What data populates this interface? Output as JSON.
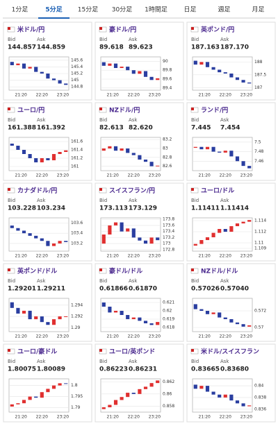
{
  "tabs": [
    "1分足",
    "5分足",
    "15分足",
    "30分足",
    "1時間足",
    "日足",
    "週足",
    "月足"
  ],
  "active_tab": 1,
  "labels": {
    "bid": "Bid",
    "ask": "Ask"
  },
  "panels": [
    {
      "name": "米ドル/円",
      "bid": "144.857",
      "ask": "144.859",
      "chart": {
        "type": "candlestick",
        "ylim": [
          144.7,
          145.7
        ],
        "yticks": [
          144.8,
          145,
          145.2,
          145.4,
          145.6
        ],
        "xticks": [
          "21:20",
          "22:20",
          "23:20"
        ],
        "open": [
          145.55,
          145.45,
          145.5,
          145.35,
          145.4,
          145.25,
          145.2,
          145.05,
          145.0,
          144.9
        ],
        "close": [
          145.45,
          145.5,
          145.35,
          145.4,
          145.25,
          145.2,
          145.05,
          145.0,
          144.9,
          144.86
        ]
      }
    },
    {
      "name": "豪ドル/円",
      "bid": "89.618",
      "ask": "89.623",
      "chart": {
        "type": "candlestick",
        "ylim": [
          89.35,
          90.1
        ],
        "yticks": [
          89.4,
          89.6,
          89.8,
          90
        ],
        "xticks": [
          "21:20",
          "22:20",
          "23:20"
        ],
        "open": [
          89.98,
          89.9,
          89.95,
          89.85,
          89.88,
          89.8,
          89.72,
          89.78,
          89.65,
          89.58
        ],
        "close": [
          89.9,
          89.95,
          89.85,
          89.88,
          89.8,
          89.72,
          89.78,
          89.65,
          89.58,
          89.618
        ]
      }
    },
    {
      "name": "英ポンド/円",
      "bid": "187.163",
      "ask": "187.170",
      "chart": {
        "type": "candlestick",
        "ylim": [
          186.9,
          188.2
        ],
        "yticks": [
          187,
          187.5,
          188
        ],
        "xticks": [
          "21:20",
          "22:20",
          "23:20"
        ],
        "open": [
          188.05,
          187.9,
          188.0,
          187.8,
          187.7,
          187.6,
          187.55,
          187.4,
          187.3,
          187.2
        ],
        "close": [
          187.9,
          188.0,
          187.8,
          187.7,
          187.6,
          187.55,
          187.4,
          187.3,
          187.2,
          187.163
        ]
      }
    },
    {
      "name": "ユーロ/円",
      "bid": "161.388",
      "ask": "161.392",
      "chart": {
        "type": "candlestick",
        "ylim": [
          160.9,
          161.7
        ],
        "yticks": [
          161,
          161.2,
          161.4,
          161.6
        ],
        "xticks": [
          "21:20",
          "22:20",
          "23:20"
        ],
        "open": [
          161.55,
          161.5,
          161.4,
          161.3,
          161.2,
          161.1,
          161.2,
          161.15,
          161.3,
          161.35
        ],
        "close": [
          161.5,
          161.4,
          161.3,
          161.2,
          161.1,
          161.2,
          161.15,
          161.3,
          161.35,
          161.388
        ]
      }
    },
    {
      "name": "NZドル/円",
      "bid": "82.613",
      "ask": "82.620",
      "chart": {
        "type": "candlestick",
        "ylim": [
          82.5,
          83.25
        ],
        "yticks": [
          82.6,
          82.8,
          83,
          83.2
        ],
        "xticks": [
          "21:20",
          "22:20",
          "23:20"
        ],
        "open": [
          82.95,
          83.0,
          83.05,
          82.95,
          83.0,
          82.9,
          82.85,
          82.75,
          82.7,
          82.6
        ],
        "close": [
          83.0,
          83.05,
          82.95,
          83.0,
          82.9,
          82.85,
          82.75,
          82.7,
          82.6,
          82.613
        ]
      }
    },
    {
      "name": "ランド/円",
      "bid": "7.445",
      "ask": "7.454",
      "chart": {
        "type": "candlestick",
        "ylim": [
          7.44,
          7.51
        ],
        "yticks": [
          7.46,
          7.48,
          7.5
        ],
        "xticks": [
          "21:20",
          "22:20",
          "23:20"
        ],
        "open": [
          7.488,
          7.49,
          7.485,
          7.49,
          7.48,
          7.478,
          7.482,
          7.47,
          7.46,
          7.45
        ],
        "close": [
          7.49,
          7.485,
          7.49,
          7.48,
          7.478,
          7.482,
          7.47,
          7.46,
          7.45,
          7.445
        ]
      }
    },
    {
      "name": "カナダドル/円",
      "bid": "103.228",
      "ask": "103.234",
      "chart": {
        "type": "candlestick",
        "ylim": [
          103.05,
          103.7
        ],
        "yticks": [
          103.2,
          103.4,
          103.6
        ],
        "xticks": [
          "21:20",
          "22:20",
          "23:20"
        ],
        "open": [
          103.55,
          103.5,
          103.45,
          103.4,
          103.35,
          103.3,
          103.25,
          103.15,
          103.2,
          103.25
        ],
        "close": [
          103.5,
          103.45,
          103.4,
          103.35,
          103.3,
          103.25,
          103.15,
          103.2,
          103.25,
          103.228
        ]
      }
    },
    {
      "name": "スイスフラン/円",
      "bid": "173.113",
      "ask": "173.129",
      "chart": {
        "type": "candlestick",
        "ylim": [
          172.75,
          173.85
        ],
        "yticks": [
          172.8,
          173,
          173.2,
          173.4,
          173.6,
          173.8
        ],
        "xticks": [
          "21:20",
          "22:20",
          "23:20"
        ],
        "open": [
          173.0,
          173.3,
          173.6,
          173.7,
          173.4,
          173.5,
          173.2,
          173.1,
          173.0,
          173.2
        ],
        "close": [
          173.3,
          173.6,
          173.7,
          173.4,
          173.5,
          173.2,
          173.1,
          173.0,
          173.2,
          173.113
        ]
      }
    },
    {
      "name": "ユーロ/ドル",
      "bid": "1.11411",
      "ask": "1.11414",
      "chart": {
        "type": "candlestick",
        "ylim": [
          1.1085,
          1.1145
        ],
        "yticks": [
          1.109,
          1.11,
          1.112,
          1.114
        ],
        "xticks": [
          "21:20",
          "22:20",
          "23:20"
        ],
        "open": [
          1.1095,
          1.1098,
          1.1105,
          1.111,
          1.1118,
          1.1125,
          1.112,
          1.113,
          1.1135,
          1.1138
        ],
        "close": [
          1.1098,
          1.1105,
          1.111,
          1.1118,
          1.1125,
          1.112,
          1.113,
          1.1135,
          1.1138,
          1.11411
        ]
      }
    },
    {
      "name": "英ポンド/ドル",
      "bid": "1.29201",
      "ask": "1.29211",
      "chart": {
        "type": "candlestick",
        "ylim": [
          1.2893,
          1.2952
        ],
        "yticks": [
          1.29,
          1.292,
          1.294
        ],
        "xticks": [
          "21:20",
          "22:20",
          "23:20"
        ],
        "open": [
          1.2945,
          1.2935,
          1.2925,
          1.293,
          1.2915,
          1.292,
          1.291,
          1.2905,
          1.2915,
          1.292
        ],
        "close": [
          1.2935,
          1.2925,
          1.293,
          1.2915,
          1.292,
          1.291,
          1.2905,
          1.2915,
          1.292,
          1.29201
        ]
      }
    },
    {
      "name": "豪ドル/ドル",
      "bid": "0.61866",
      "ask": "0.61870",
      "chart": {
        "type": "candlestick",
        "ylim": [
          0.6175,
          0.6215
        ],
        "yticks": [
          0.618,
          0.619,
          0.62,
          0.621
        ],
        "xticks": [
          "21:20",
          "22:20",
          "23:20"
        ],
        "open": [
          0.621,
          0.6205,
          0.6198,
          0.62,
          0.6195,
          0.619,
          0.6192,
          0.6188,
          0.6185,
          0.6183
        ],
        "close": [
          0.6205,
          0.6198,
          0.62,
          0.6195,
          0.619,
          0.6192,
          0.6188,
          0.6185,
          0.6183,
          0.61866
        ]
      }
    },
    {
      "name": "NZドル/ドル",
      "bid": "0.57026",
      "ask": "0.57040",
      "chart": {
        "type": "candlestick",
        "ylim": [
          0.5695,
          0.5735
        ],
        "yticks": [
          0.57,
          0.572
        ],
        "xticks": [
          "21:20",
          "22:20",
          "23:20"
        ],
        "open": [
          0.5728,
          0.5722,
          0.572,
          0.5716,
          0.5718,
          0.5712,
          0.571,
          0.5706,
          0.5704,
          0.5701
        ],
        "close": [
          0.5722,
          0.572,
          0.5716,
          0.5718,
          0.5712,
          0.571,
          0.5706,
          0.5704,
          0.5701,
          0.57026
        ]
      }
    },
    {
      "name": "ユーロ/豪ドル",
      "bid": "1.80075",
      "ask": "1.80089",
      "chart": {
        "type": "candlestick",
        "ylim": [
          1.788,
          1.803
        ],
        "yticks": [
          1.79,
          1.795,
          1.8
        ],
        "xticks": [
          "21:20",
          "22:20",
          "23:20"
        ],
        "open": [
          1.7905,
          1.7915,
          1.792,
          1.7935,
          1.795,
          1.7945,
          1.797,
          1.7985,
          1.8,
          1.801
        ],
        "close": [
          1.7915,
          1.792,
          1.7935,
          1.795,
          1.7945,
          1.797,
          1.7985,
          1.8,
          1.801,
          1.80075
        ]
      }
    },
    {
      "name": "ユーロ/英ポンド",
      "bid": "0.86223",
      "ask": "0.86231",
      "chart": {
        "type": "candlestick",
        "ylim": [
          0.857,
          0.8625
        ],
        "yticks": [
          0.858,
          0.86,
          0.862
        ],
        "xticks": [
          "21:20",
          "22:20",
          "23:20"
        ],
        "open": [
          0.8575,
          0.8578,
          0.8582,
          0.859,
          0.8595,
          0.8602,
          0.86,
          0.8608,
          0.8612,
          0.8618
        ],
        "close": [
          0.8578,
          0.8582,
          0.859,
          0.8595,
          0.8602,
          0.86,
          0.8608,
          0.8612,
          0.8618,
          0.86223
        ]
      }
    },
    {
      "name": "米ドル/スイスフラン",
      "bid": "0.83665",
      "ask": "0.83680",
      "chart": {
        "type": "candlestick",
        "ylim": [
          0.8355,
          0.8412
        ],
        "yticks": [
          0.836,
          0.838,
          0.84
        ],
        "xticks": [
          "21:20",
          "22:20",
          "23:20"
        ],
        "open": [
          0.8402,
          0.8395,
          0.84,
          0.839,
          0.8385,
          0.838,
          0.8385,
          0.8375,
          0.837,
          0.8365
        ],
        "close": [
          0.8395,
          0.84,
          0.839,
          0.8385,
          0.838,
          0.8385,
          0.8375,
          0.837,
          0.8365,
          0.83665
        ]
      }
    }
  ]
}
